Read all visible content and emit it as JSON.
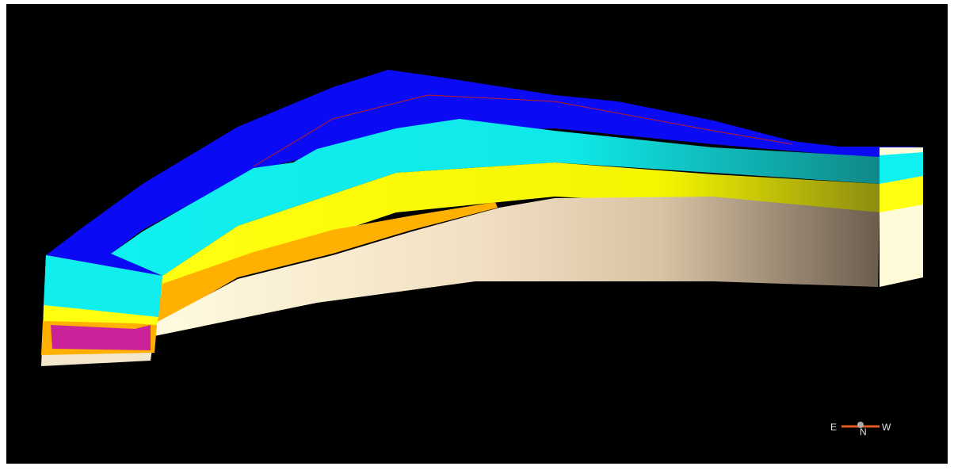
{
  "compass": {
    "east": "E",
    "north": "N",
    "west": "W"
  }
}
